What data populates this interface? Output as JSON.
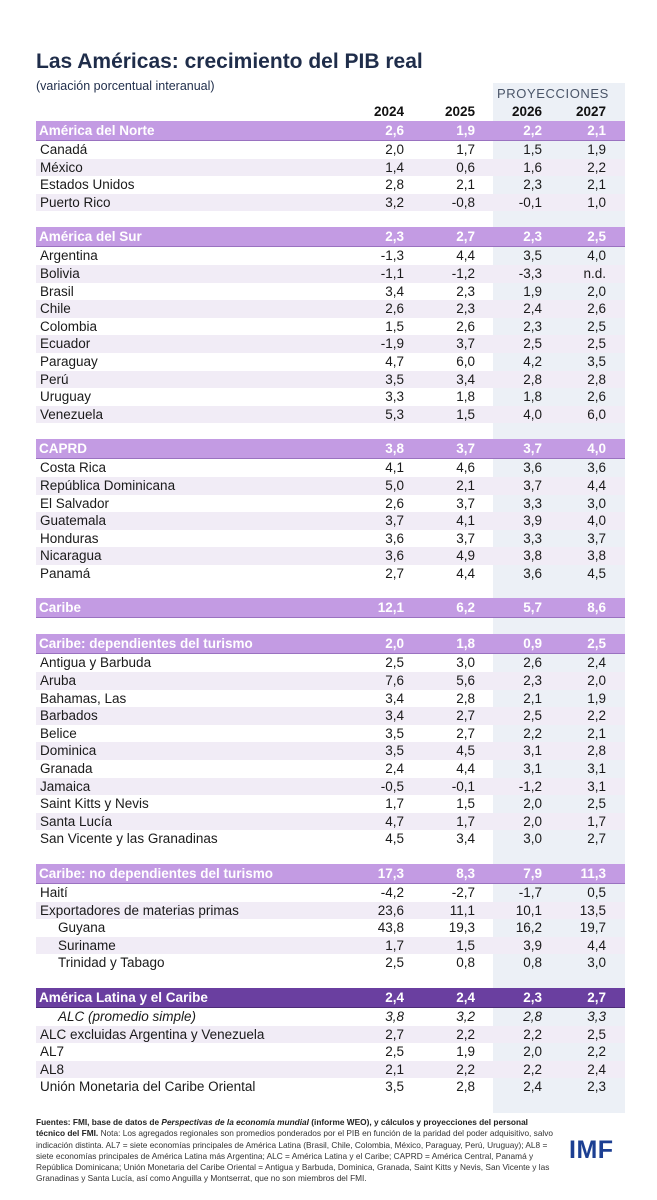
{
  "title": "Las Américas: crecimiento del PIB real",
  "subtitle": "(variación porcentual interanual)",
  "projections_label": "PROYECCIONES",
  "years": [
    "2024",
    "2025",
    "2026",
    "2027"
  ],
  "rows": [
    {
      "kind": "header",
      "label": "América del Norte",
      "values": [
        "2,6",
        "1,9",
        "2,2",
        "2,1"
      ]
    },
    {
      "kind": "row",
      "label": "Canadá",
      "values": [
        "2,0",
        "1,7",
        "1,5",
        "1,9"
      ]
    },
    {
      "kind": "row",
      "label": "México",
      "values": [
        "1,4",
        "0,6",
        "1,6",
        "2,2"
      ]
    },
    {
      "kind": "row",
      "label": "Estados Unidos",
      "values": [
        "2,8",
        "2,1",
        "2,3",
        "2,1"
      ]
    },
    {
      "kind": "row",
      "label": "Puerto Rico",
      "values": [
        "3,2",
        "-0,8",
        "-0,1",
        "1,0"
      ]
    },
    {
      "kind": "gap"
    },
    {
      "kind": "header",
      "label": "América del Sur",
      "values": [
        "2,3",
        "2,7",
        "2,3",
        "2,5"
      ]
    },
    {
      "kind": "row",
      "label": "Argentina",
      "values": [
        "-1,3",
        "4,4",
        "3,5",
        "4,0"
      ]
    },
    {
      "kind": "row",
      "label": "Bolivia",
      "values": [
        "-1,1",
        "-1,2",
        "-3,3",
        "n.d."
      ]
    },
    {
      "kind": "row",
      "label": "Brasil",
      "values": [
        "3,4",
        "2,3",
        "1,9",
        "2,0"
      ]
    },
    {
      "kind": "row",
      "label": "Chile",
      "values": [
        "2,6",
        "2,3",
        "2,4",
        "2,6"
      ]
    },
    {
      "kind": "row",
      "label": "Colombia",
      "values": [
        "1,5",
        "2,6",
        "2,3",
        "2,5"
      ]
    },
    {
      "kind": "row",
      "label": "Ecuador",
      "values": [
        "-1,9",
        "3,7",
        "2,5",
        "2,5"
      ]
    },
    {
      "kind": "row",
      "label": "Paraguay",
      "values": [
        "4,7",
        "6,0",
        "4,2",
        "3,5"
      ]
    },
    {
      "kind": "row",
      "label": "Perú",
      "values": [
        "3,5",
        "3,4",
        "2,8",
        "2,8"
      ]
    },
    {
      "kind": "row",
      "label": "Uruguay",
      "values": [
        "3,3",
        "1,8",
        "1,8",
        "2,6"
      ]
    },
    {
      "kind": "row",
      "label": "Venezuela",
      "values": [
        "5,3",
        "1,5",
        "4,0",
        "6,0"
      ]
    },
    {
      "kind": "gap"
    },
    {
      "kind": "header",
      "label": "CAPRD",
      "values": [
        "3,8",
        "3,7",
        "3,7",
        "4,0"
      ]
    },
    {
      "kind": "row",
      "label": "Costa Rica",
      "values": [
        "4,1",
        "4,6",
        "3,6",
        "3,6"
      ]
    },
    {
      "kind": "row",
      "label": "República Dominicana",
      "values": [
        "5,0",
        "2,1",
        "3,7",
        "4,4"
      ]
    },
    {
      "kind": "row",
      "label": "El Salvador",
      "values": [
        "2,6",
        "3,7",
        "3,3",
        "3,0"
      ]
    },
    {
      "kind": "row",
      "label": "Guatemala",
      "values": [
        "3,7",
        "4,1",
        "3,9",
        "4,0"
      ]
    },
    {
      "kind": "row",
      "label": "Honduras",
      "values": [
        "3,6",
        "3,7",
        "3,3",
        "3,7"
      ]
    },
    {
      "kind": "row",
      "label": "Nicaragua",
      "values": [
        "3,6",
        "4,9",
        "3,8",
        "3,8"
      ]
    },
    {
      "kind": "row",
      "label": "Panamá",
      "values": [
        "2,7",
        "4,4",
        "3,6",
        "4,5"
      ]
    },
    {
      "kind": "gap"
    },
    {
      "kind": "header",
      "label": "Caribe",
      "values": [
        "12,1",
        "6,2",
        "5,7",
        "8,6"
      ]
    },
    {
      "kind": "gap"
    },
    {
      "kind": "header",
      "label": "Caribe: dependientes del turismo",
      "values": [
        "2,0",
        "1,8",
        "0,9",
        "2,5"
      ]
    },
    {
      "kind": "row",
      "label": "Antigua y Barbuda",
      "values": [
        "2,5",
        "3,0",
        "2,6",
        "2,4"
      ]
    },
    {
      "kind": "row",
      "label": "Aruba",
      "values": [
        "7,6",
        "5,6",
        "2,3",
        "2,0"
      ]
    },
    {
      "kind": "row",
      "label": "Bahamas, Las",
      "values": [
        "3,4",
        "2,8",
        "2,1",
        "1,9"
      ]
    },
    {
      "kind": "row",
      "label": "Barbados",
      "values": [
        "3,4",
        "2,7",
        "2,5",
        "2,2"
      ]
    },
    {
      "kind": "row",
      "label": "Belice",
      "values": [
        "3,5",
        "2,7",
        "2,2",
        "2,1"
      ]
    },
    {
      "kind": "row",
      "label": "Dominica",
      "values": [
        "3,5",
        "4,5",
        "3,1",
        "2,8"
      ]
    },
    {
      "kind": "row",
      "label": "Granada",
      "values": [
        "2,4",
        "4,4",
        "3,1",
        "3,1"
      ]
    },
    {
      "kind": "row",
      "label": "Jamaica",
      "values": [
        "-0,5",
        "-0,1",
        "-1,2",
        "3,1"
      ]
    },
    {
      "kind": "row",
      "label": "Saint Kitts y Nevis",
      "values": [
        "1,7",
        "1,5",
        "2,0",
        "2,5"
      ]
    },
    {
      "kind": "row",
      "label": "Santa Lucía",
      "values": [
        "4,7",
        "1,7",
        "2,0",
        "1,7"
      ]
    },
    {
      "kind": "row",
      "label": "San Vicente y las Granadinas",
      "values": [
        "4,5",
        "3,4",
        "3,0",
        "2,7"
      ]
    },
    {
      "kind": "gap"
    },
    {
      "kind": "header",
      "label": "Caribe: no dependientes del turismo",
      "values": [
        "17,3",
        "8,3",
        "7,9",
        "11,3"
      ]
    },
    {
      "kind": "row",
      "label": "Haití",
      "values": [
        "-4,2",
        "-2,7",
        "-1,7",
        "0,5"
      ]
    },
    {
      "kind": "row",
      "label": "Exportadores de materias primas",
      "values": [
        "23,6",
        "11,1",
        "10,1",
        "13,5"
      ]
    },
    {
      "kind": "row",
      "label": "Guyana",
      "values": [
        "43,8",
        "19,3",
        "16,2",
        "19,7"
      ],
      "sub": true
    },
    {
      "kind": "row",
      "label": "Suriname",
      "values": [
        "1,7",
        "1,5",
        "3,9",
        "4,4"
      ],
      "sub": true
    },
    {
      "kind": "row",
      "label": "Trinidad y Tabago",
      "values": [
        "2,5",
        "0,8",
        "0,8",
        "3,0"
      ],
      "sub": true
    },
    {
      "kind": "gap"
    },
    {
      "kind": "header",
      "label": "América Latina y el Caribe",
      "values": [
        "2,4",
        "2,4",
        "2,3",
        "2,7"
      ],
      "dark": true
    },
    {
      "kind": "row",
      "label": "ALC (promedio simple)",
      "values": [
        "3,8",
        "3,2",
        "2,8",
        "3,3"
      ],
      "italic": true,
      "sub": true
    },
    {
      "kind": "row",
      "label": "ALC excluidas Argentina y Venezuela",
      "values": [
        "2,7",
        "2,2",
        "2,2",
        "2,5"
      ]
    },
    {
      "kind": "row",
      "label": "AL7",
      "values": [
        "2,5",
        "1,9",
        "2,0",
        "2,2"
      ]
    },
    {
      "kind": "row",
      "label": "AL8",
      "values": [
        "2,1",
        "2,2",
        "2,2",
        "2,4"
      ]
    },
    {
      "kind": "row",
      "label": "Unión Monetaria del Caribe Oriental",
      "values": [
        "3,5",
        "2,8",
        "2,4",
        "2,3"
      ]
    }
  ],
  "footnote": {
    "source_bold_1": "Fuentes: FMI, base de datos de",
    "source_italic": "Perspectivas de la economía mundial",
    "source_bold_2": "(informe WEO), y cálculos y proyecciones del personal técnico del FMI.",
    "note": "Nota: Los agregados regionales son promedios ponderados por el PIB en función de la paridad del poder adquisitivo, salvo indicación distinta. AL7 = siete economías principales de América Latina (Brasil, Chile, Colombia, México, Paraguay, Perú, Uruguay); AL8 = siete economías principales de América Latina más Argentina; ALC = América Latina y el Caribe; CAPRD = América Central, Panamá y República Dominicana; Unión Monetaria del Caribe Oriental = Antigua y Barbuda, Dominica, Granada, Saint Kitts y Nevis, San Vicente y las Granadinas y Santa Lucía, así como Anguilla y Montserrat, que no son miembros del FMI."
  },
  "logo": "IMF",
  "colors": {
    "header": "#c39be3",
    "header_dark": "#6a3fa0",
    "row_alt": "#f1ecf6",
    "projection_shade": "#ecf0f6",
    "title": "#1f2d4a",
    "logo": "#1c3f92"
  }
}
